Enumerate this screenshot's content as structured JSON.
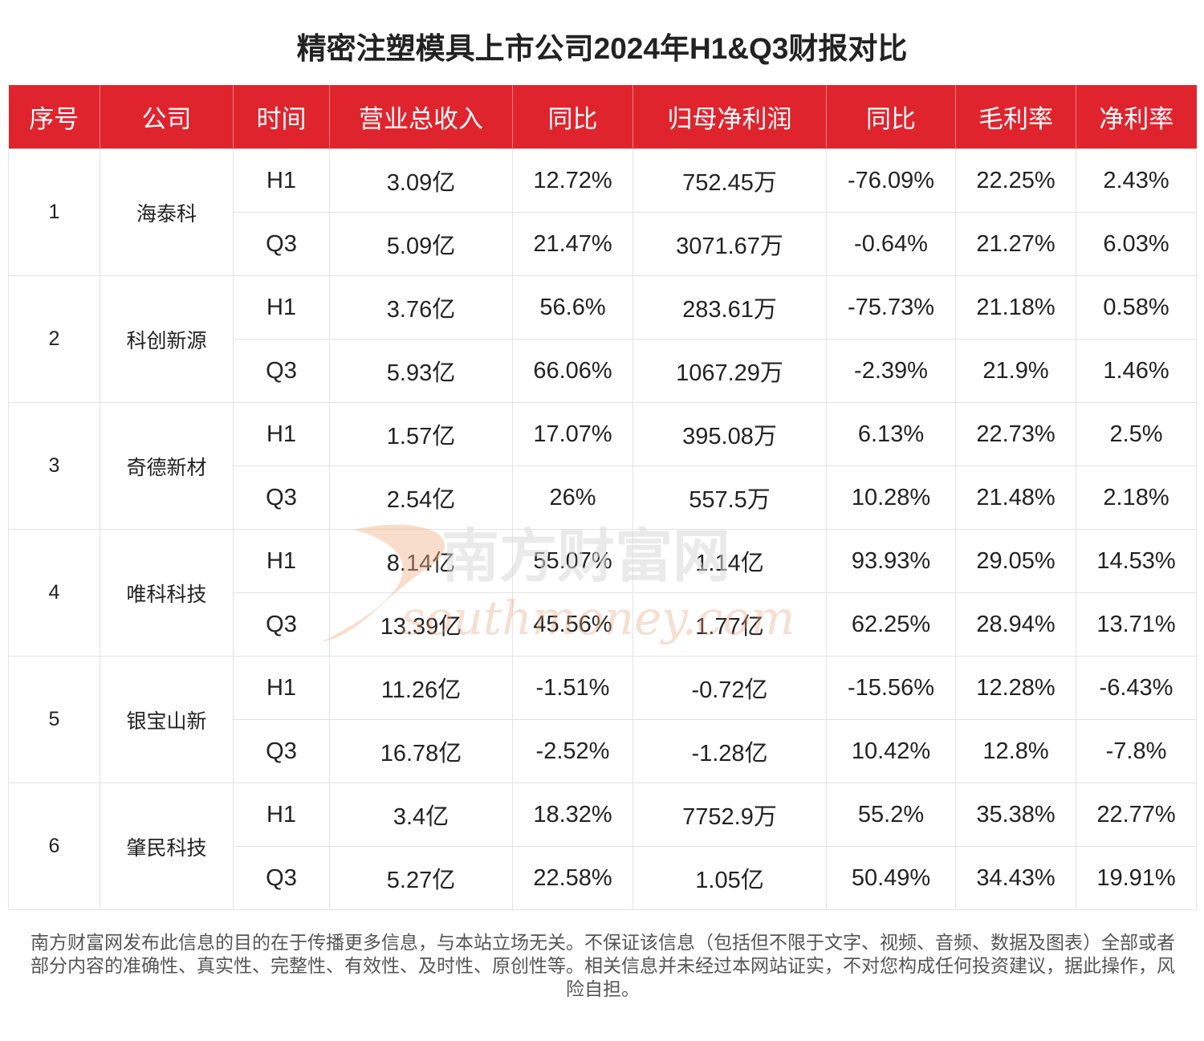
{
  "title": "精密注塑模具上市公司2024年H1&Q3财报对比",
  "chart_data": {
    "type": "table",
    "title": "精密注塑模具上市公司2024年H1&Q3财报对比",
    "columns": [
      "序号",
      "公司",
      "时间",
      "营业总收入",
      "同比",
      "归母净利润",
      "同比",
      "毛利率",
      "净利率"
    ],
    "companies": [
      {
        "index": "1",
        "name": "海泰科",
        "rows": [
          [
            "H1",
            "3.09亿",
            "12.72%",
            "752.45万",
            "-76.09%",
            "22.25%",
            "2.43%"
          ],
          [
            "Q3",
            "5.09亿",
            "21.47%",
            "3071.67万",
            "-0.64%",
            "21.27%",
            "6.03%"
          ]
        ]
      },
      {
        "index": "2",
        "name": "科创新源",
        "rows": [
          [
            "H1",
            "3.76亿",
            "56.6%",
            "283.61万",
            "-75.73%",
            "21.18%",
            "0.58%"
          ],
          [
            "Q3",
            "5.93亿",
            "66.06%",
            "1067.29万",
            "-2.39%",
            "21.9%",
            "1.46%"
          ]
        ]
      },
      {
        "index": "3",
        "name": "奇德新材",
        "rows": [
          [
            "H1",
            "1.57亿",
            "17.07%",
            "395.08万",
            "6.13%",
            "22.73%",
            "2.5%"
          ],
          [
            "Q3",
            "2.54亿",
            "26%",
            "557.5万",
            "10.28%",
            "21.48%",
            "2.18%"
          ]
        ]
      },
      {
        "index": "4",
        "name": "唯科科技",
        "rows": [
          [
            "H1",
            "8.14亿",
            "55.07%",
            "1.14亿",
            "93.93%",
            "29.05%",
            "14.53%"
          ],
          [
            "Q3",
            "13.39亿",
            "45.56%",
            "1.77亿",
            "62.25%",
            "28.94%",
            "13.71%"
          ]
        ]
      },
      {
        "index": "5",
        "name": "银宝山新",
        "rows": [
          [
            "H1",
            "11.26亿",
            "-1.51%",
            "-0.72亿",
            "-15.56%",
            "12.28%",
            "-6.43%"
          ],
          [
            "Q3",
            "16.78亿",
            "-2.52%",
            "-1.28亿",
            "10.42%",
            "12.8%",
            "-7.8%"
          ]
        ]
      },
      {
        "index": "6",
        "name": "肇民科技",
        "rows": [
          [
            "H1",
            "3.4亿",
            "18.32%",
            "7752.9万",
            "55.2%",
            "35.38%",
            "22.77%"
          ],
          [
            "Q3",
            "5.27亿",
            "22.58%",
            "1.05亿",
            "50.49%",
            "34.43%",
            "19.91%"
          ]
        ]
      }
    ]
  },
  "watermark": {
    "text_cn": "南方财富网",
    "text_en": "southmoney.com"
  },
  "footnote": "南方财富网发布此信息的目的在于传播更多信息，与本站立场无关。不保证该信息（包括但不限于文字、视频、音频、数据及图表）全部或者部分内容的准确性、真实性、完整性、有效性、及时性、原创性等。相关信息并未经过本网站证实，不对您构成任何投资建议，据此操作，风险自担。",
  "colors": {
    "header_bg": "#e0242e",
    "header_text": "#ffffff",
    "grid": "#e3e3e3",
    "watermark": "#e8a27a"
  }
}
